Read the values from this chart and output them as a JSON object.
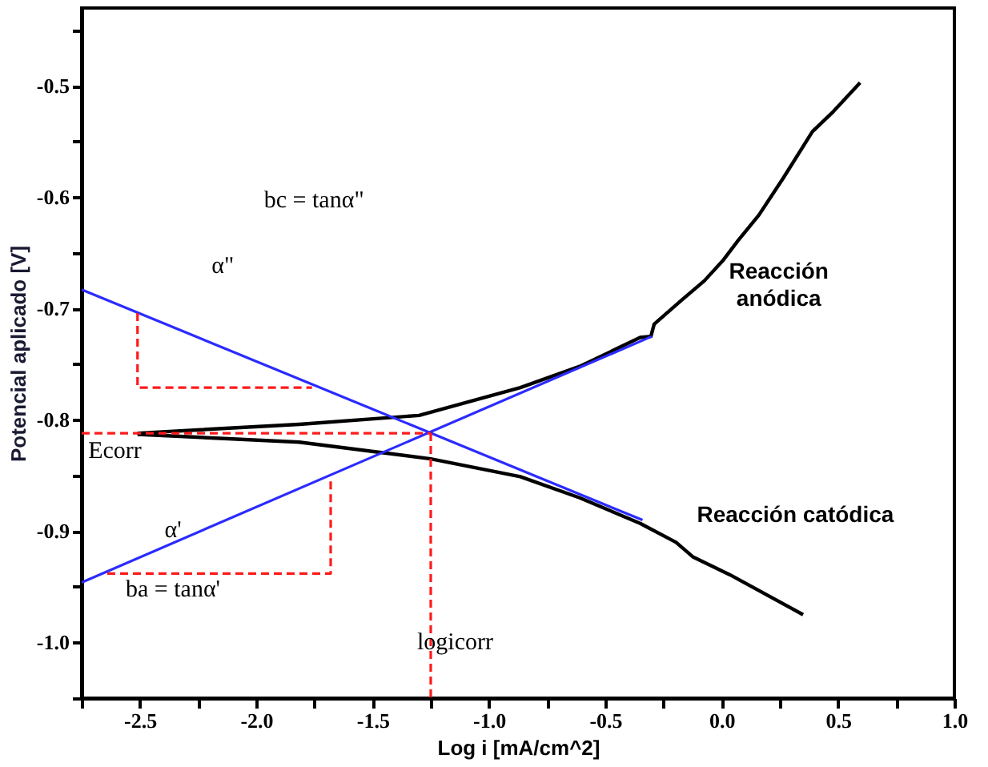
{
  "chart_data": {
    "type": "line",
    "xlabel": "Log i [mA/cm^2]",
    "ylabel": "Potencial aplicado [V]",
    "xlim": [
      -2.75,
      1.0
    ],
    "ylim": [
      -1.05,
      -0.43
    ],
    "xticks": [
      {
        "value": -2.75,
        "label": null
      },
      {
        "value": -2.5,
        "label": "-2.5"
      },
      {
        "value": -2.25,
        "label": null
      },
      {
        "value": -2.0,
        "label": "-2.0"
      },
      {
        "value": -1.75,
        "label": null
      },
      {
        "value": -1.5,
        "label": "-1.5"
      },
      {
        "value": -1.25,
        "label": null
      },
      {
        "value": -1.0,
        "label": "-1.0"
      },
      {
        "value": -0.75,
        "label": null
      },
      {
        "value": -0.5,
        "label": "-0.5"
      },
      {
        "value": -0.25,
        "label": null
      },
      {
        "value": 0,
        "label": "0.0"
      },
      {
        "value": 0.25,
        "label": null
      },
      {
        "value": 0.5,
        "label": "0.5"
      },
      {
        "value": 0.75,
        "label": null
      },
      {
        "value": 1.0,
        "label": "1.0"
      }
    ],
    "yticks": [
      {
        "value": -1.05,
        "label": null
      },
      {
        "value": -1.0,
        "label": "-1.0"
      },
      {
        "value": -0.95,
        "label": null
      },
      {
        "value": -0.9,
        "label": "-0.9"
      },
      {
        "value": -0.85,
        "label": null
      },
      {
        "value": -0.8,
        "label": "-0.8"
      },
      {
        "value": -0.75,
        "label": null
      },
      {
        "value": -0.7,
        "label": "-0.7"
      },
      {
        "value": -0.65,
        "label": null
      },
      {
        "value": -0.6,
        "label": "-0.6"
      },
      {
        "value": -0.55,
        "label": null
      },
      {
        "value": -0.5,
        "label": "-0.5"
      },
      {
        "value": -0.45,
        "label": null
      }
    ],
    "grid": false,
    "marker": "none",
    "series": [
      {
        "color": "#000000",
        "line_style": "solid",
        "x": [
          -2.51,
          -1.815,
          -1.3,
          -0.865,
          -0.61,
          -0.35,
          -0.304,
          -0.29,
          -0.175,
          -0.074,
          0.005,
          0.07,
          0.16,
          0.264,
          0.39,
          0.48,
          0.595
        ],
        "values": [
          -0.812,
          -0.804,
          -0.796,
          -0.771,
          -0.752,
          -0.726,
          -0.725,
          -0.714,
          -0.693,
          -0.675,
          -0.657,
          -0.639,
          -0.616,
          -0.583,
          -0.541,
          -0.523,
          -0.497
        ]
      },
      {
        "color": "#000000",
        "line_style": "solid",
        "x": [
          -2.51,
          -1.815,
          -1.25,
          -0.865,
          -0.61,
          -0.35,
          -0.196,
          -0.124,
          0.034,
          0.35
        ],
        "values": [
          -0.813,
          -0.82,
          -0.835,
          -0.851,
          -0.87,
          -0.893,
          -0.91,
          -0.923,
          -0.939,
          -0.975
        ]
      },
      {
        "color": "#2b2bff",
        "line_style": "solid",
        "x": [
          -2.75,
          -0.34
        ],
        "values": [
          -0.683,
          -0.89
        ]
      },
      {
        "color": "#2b2bff",
        "line_style": "solid",
        "x": [
          -2.75,
          -0.3
        ],
        "values": [
          -0.946,
          -0.725
        ]
      },
      {
        "color": "#ff1a1a",
        "line_style": "dashed",
        "x": [
          -2.75,
          -1.25
        ],
        "values": [
          -0.812,
          -0.812
        ]
      },
      {
        "color": "#ff1a1a",
        "line_style": "dashed",
        "x": [
          -1.25,
          -1.25
        ],
        "values": [
          -0.812,
          -1.05
        ]
      },
      {
        "color": "#ff1a1a",
        "line_style": "dashed",
        "x": [
          -2.51,
          -2.51,
          -1.76
        ],
        "values": [
          -0.704,
          -0.771,
          -0.771
        ]
      },
      {
        "color": "#ff1a1a",
        "line_style": "dashed",
        "x": [
          -2.64,
          -1.68,
          -1.68
        ],
        "values": [
          -0.938,
          -0.938,
          -0.851
        ]
      }
    ],
    "annotations": [
      "Reacción\nanódica",
      "Reacción catódica",
      "bc = tanα\"",
      "α\"",
      "Ecorr",
      "α'",
      "ba = tanα'",
      "logicorr"
    ]
  }
}
